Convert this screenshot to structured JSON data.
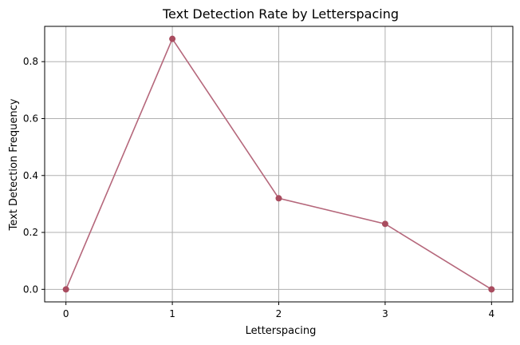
{
  "chart_data": {
    "type": "line",
    "title": "Text Detection Rate by Letterspacing",
    "xlabel": "Letterspacing",
    "ylabel": "Text Detection Frequency",
    "x": [
      0,
      1,
      2,
      3,
      4
    ],
    "series": [
      {
        "values": [
          0.0,
          0.88,
          0.32,
          0.23,
          0.0
        ],
        "color": "#b5677b",
        "marker_color": "#a94c5f"
      }
    ],
    "xticks": [
      "0",
      "1",
      "2",
      "3",
      "4"
    ],
    "yticks": [
      "0.0",
      "0.2",
      "0.4",
      "0.6",
      "0.8"
    ],
    "ytick_values": [
      0.0,
      0.2,
      0.4,
      0.6,
      0.8
    ],
    "xlim": [
      -0.2,
      4.2
    ],
    "ylim": [
      -0.044,
      0.924
    ],
    "grid": true
  }
}
